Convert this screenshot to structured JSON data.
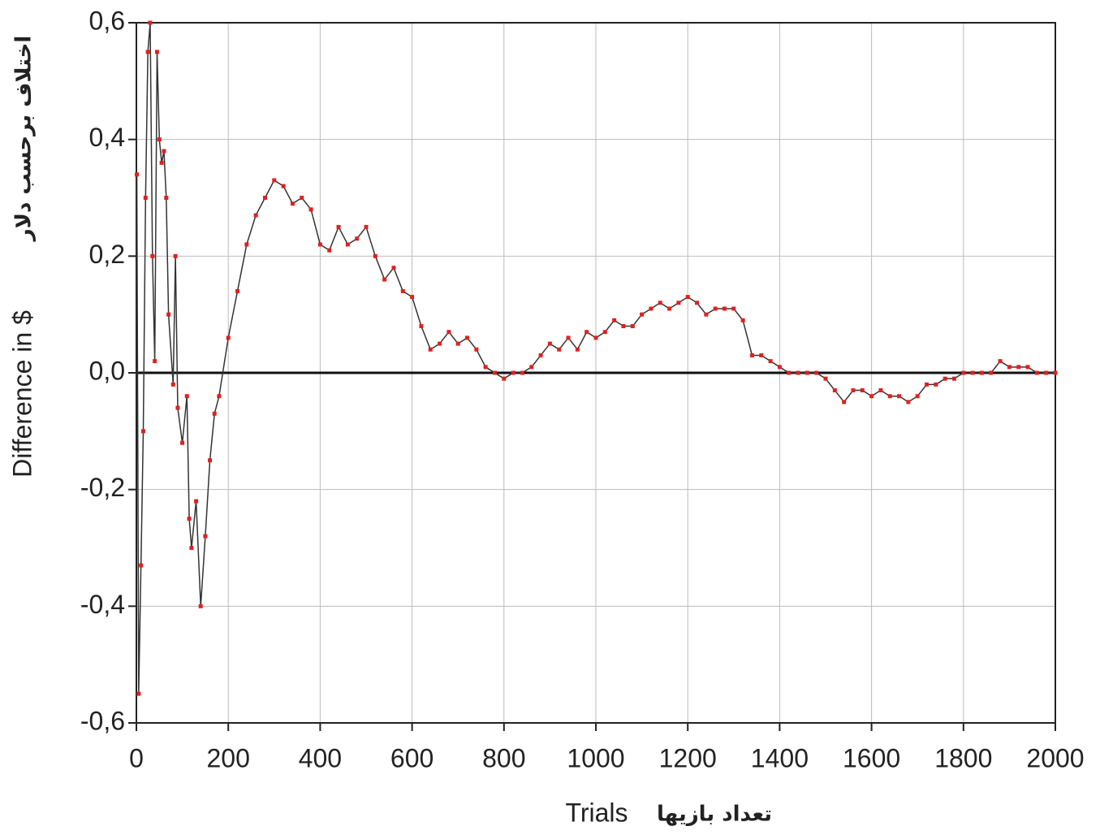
{
  "chart_data": {
    "type": "line",
    "x_label": "Trials",
    "x_label_fa": "تعداد بازیها",
    "y_label": "Difference in $",
    "y_label_fa": "اختلاف برحسب دلار",
    "xlim": [
      0,
      2000
    ],
    "xticks": [
      0,
      200,
      400,
      600,
      800,
      1000,
      1200,
      1400,
      1600,
      1800,
      2000
    ],
    "ylim": [
      -0.6,
      0.6
    ],
    "yticks": [
      {
        "value": -0.6,
        "label": "-0,6"
      },
      {
        "value": -0.4,
        "label": "-0,4"
      },
      {
        "value": -0.2,
        "label": "-0,2"
      },
      {
        "value": 0,
        "label": "0,0"
      },
      {
        "value": 0.2,
        "label": "0,2"
      },
      {
        "value": 0.4,
        "label": "0,4"
      },
      {
        "value": 0.6,
        "label": "0,6"
      }
    ],
    "grid": true,
    "line_color": "#333333",
    "marker_color": "#e02020",
    "x": [
      1,
      5,
      10,
      15,
      20,
      25,
      30,
      35,
      40,
      45,
      50,
      55,
      60,
      65,
      70,
      80,
      85,
      90,
      100,
      110,
      115,
      120,
      130,
      140,
      150,
      160,
      170,
      180,
      200,
      220,
      240,
      260,
      280,
      300,
      320,
      340,
      360,
      380,
      400,
      420,
      440,
      460,
      480,
      500,
      520,
      540,
      560,
      580,
      600,
      620,
      640,
      660,
      680,
      700,
      720,
      740,
      760,
      780,
      800,
      820,
      840,
      860,
      880,
      900,
      920,
      940,
      960,
      980,
      1000,
      1020,
      1040,
      1060,
      1080,
      1100,
      1120,
      1140,
      1160,
      1180,
      1200,
      1220,
      1240,
      1260,
      1280,
      1300,
      1320,
      1340,
      1360,
      1380,
      1400,
      1420,
      1440,
      1460,
      1480,
      1500,
      1520,
      1540,
      1560,
      1580,
      1600,
      1620,
      1640,
      1660,
      1680,
      1700,
      1720,
      1740,
      1760,
      1780,
      1800,
      1820,
      1840,
      1860,
      1880,
      1900,
      1920,
      1940,
      1960,
      1980,
      2000
    ],
    "values": [
      0.34,
      -0.55,
      -0.33,
      -0.1,
      0.3,
      0.55,
      0.6,
      0.2,
      0.02,
      0.55,
      0.4,
      0.36,
      0.38,
      0.3,
      0.1,
      -0.02,
      0.2,
      -0.06,
      -0.12,
      -0.04,
      -0.25,
      -0.3,
      -0.22,
      -0.4,
      -0.28,
      -0.15,
      -0.07,
      -0.04,
      0.06,
      0.14,
      0.22,
      0.27,
      0.3,
      0.33,
      0.32,
      0.29,
      0.3,
      0.28,
      0.22,
      0.21,
      0.25,
      0.22,
      0.23,
      0.25,
      0.2,
      0.16,
      0.18,
      0.14,
      0.13,
      0.08,
      0.04,
      0.05,
      0.07,
      0.05,
      0.06,
      0.04,
      0.01,
      0.0,
      -0.01,
      0.0,
      0.0,
      0.01,
      0.03,
      0.05,
      0.04,
      0.06,
      0.04,
      0.07,
      0.06,
      0.07,
      0.09,
      0.08,
      0.08,
      0.1,
      0.11,
      0.12,
      0.11,
      0.12,
      0.13,
      0.12,
      0.1,
      0.11,
      0.11,
      0.11,
      0.09,
      0.03,
      0.03,
      0.02,
      0.01,
      0.0,
      0.0,
      0.0,
      0.0,
      -0.01,
      -0.03,
      -0.05,
      -0.03,
      -0.03,
      -0.04,
      -0.03,
      -0.04,
      -0.04,
      -0.05,
      -0.04,
      -0.02,
      -0.02,
      -0.01,
      -0.01,
      0.0,
      0.0,
      0.0,
      0.0,
      0.02,
      0.01,
      0.01,
      0.01,
      0.0,
      0.0,
      0.0
    ]
  }
}
